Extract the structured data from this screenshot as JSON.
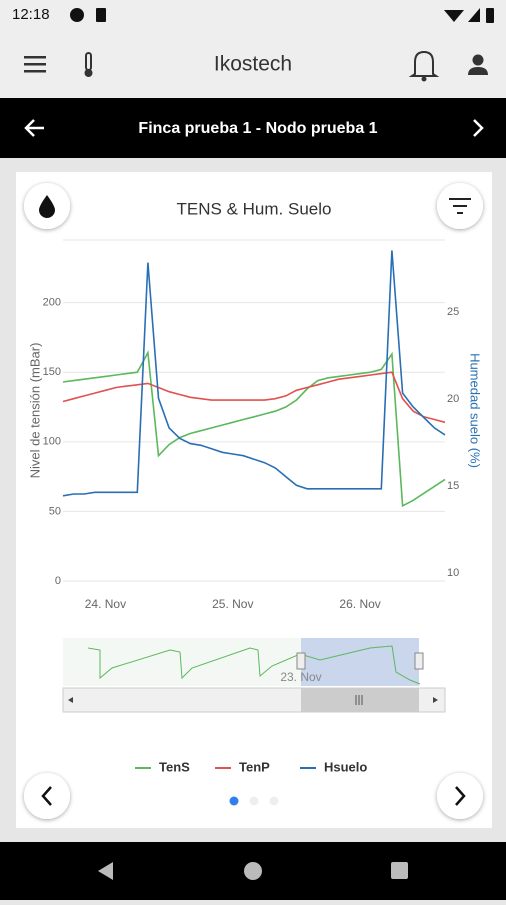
{
  "status_bar": {
    "time": "12:18"
  },
  "app_bar": {
    "title": "Ikostech"
  },
  "node_bar": {
    "title": "Finca prueba 1 - Nodo prueba 1"
  },
  "chart_data": {
    "type": "line",
    "title": "TENS & Hum. Suelo",
    "ylabel": "Nivel de tensión (mBar)",
    "y2label": "Humedad suelo (%)",
    "categories": [
      null,
      null,
      null,
      null,
      "24. Nov",
      null,
      null,
      null,
      null,
      null,
      null,
      null,
      null,
      null,
      null,
      null,
      "25. Nov",
      null,
      null,
      null,
      null,
      null,
      null,
      null,
      null,
      null,
      null,
      null,
      "26. Nov",
      null,
      null,
      null,
      null,
      null,
      null,
      null,
      null
    ],
    "series": [
      {
        "name": "TenS",
        "color": "#5cb85c",
        "axis": "y",
        "values": [
          143,
          144,
          145,
          146,
          147,
          148,
          149,
          150,
          164,
          90,
          98,
          103,
          106,
          108,
          110,
          112,
          114,
          116,
          118,
          120,
          122,
          125,
          130,
          138,
          144,
          146,
          147,
          148,
          149,
          150,
          152,
          163,
          54,
          58,
          63,
          68,
          73
        ]
      },
      {
        "name": "TenP",
        "color": "#e0524f",
        "axis": "y",
        "values": [
          129,
          131,
          133,
          135,
          137,
          139,
          140,
          141,
          142,
          139,
          136,
          134,
          132,
          131,
          130,
          130,
          130,
          130,
          130,
          130,
          131,
          133,
          137,
          139,
          141,
          143,
          145,
          146,
          147,
          148,
          149,
          150,
          131,
          122,
          118,
          116,
          114
        ]
      },
      {
        "name": "Hsuelo",
        "color": "#2a6fb5",
        "axis": "y2",
        "values": [
          14.9,
          15.0,
          15.0,
          15.1,
          15.1,
          15.1,
          15.1,
          15.1,
          28.3,
          20.5,
          18.8,
          18.2,
          17.9,
          17.8,
          17.6,
          17.4,
          17.3,
          17.2,
          17.0,
          16.8,
          16.5,
          16.0,
          15.5,
          15.3,
          15.3,
          15.3,
          15.3,
          15.3,
          15.3,
          15.3,
          15.3,
          29.0,
          20.8,
          20.0,
          19.4,
          18.8,
          18.4
        ]
      }
    ],
    "ylim": [
      0,
      245
    ],
    "yticks": [
      0,
      50,
      100,
      150,
      200
    ],
    "y2lim": [
      10,
      29.6
    ],
    "y2ticks": [
      10,
      15,
      20,
      25
    ],
    "grid": true,
    "navigator_label": "23. Nov"
  }
}
